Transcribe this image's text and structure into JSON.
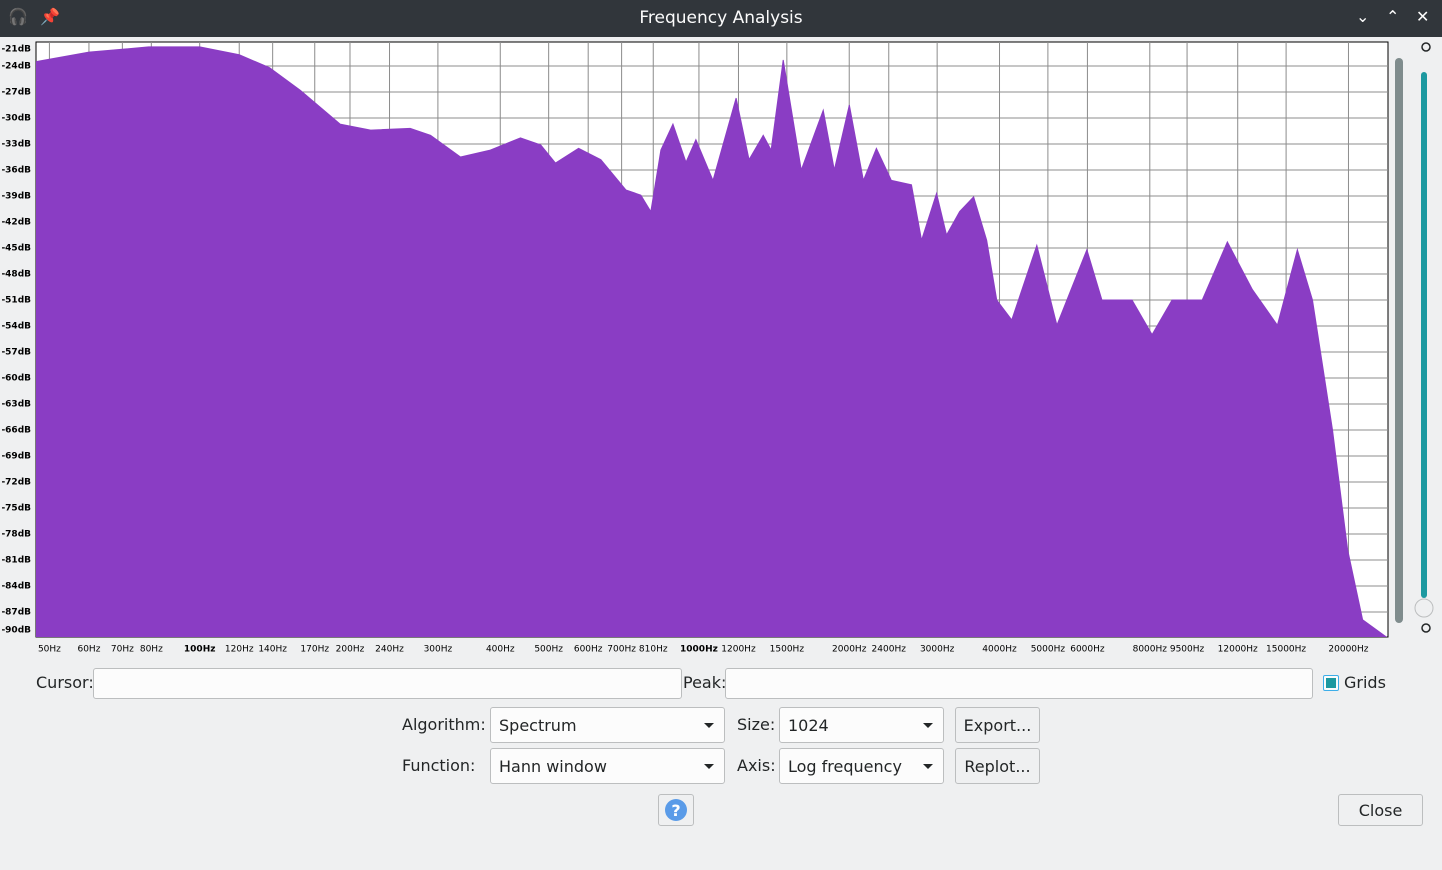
{
  "window": {
    "title": "Frequency Analysis"
  },
  "chart_data": {
    "type": "area",
    "color": "#8a3dc4",
    "xlog": true,
    "grid": true,
    "xlim": [
      47,
      24000
    ],
    "ylim": [
      -90,
      -21
    ],
    "x": [
      47,
      60,
      79,
      100,
      120,
      138,
      159,
      191,
      220,
      264,
      290,
      333,
      382,
      439,
      482,
      516,
      574,
      636,
      714,
      765,
      801,
      839,
      887,
      942,
      986,
      1067,
      1187,
      1260,
      1345,
      1395,
      1475,
      1603,
      1774,
      1867,
      2001,
      2135,
      2267,
      2429,
      2665,
      2792,
      2992,
      3133,
      3328,
      3550,
      3770,
      3949,
      4232,
      4751,
      5212,
      5985,
      6415,
      7370,
      8084,
      8866,
      10190,
      11440,
      12840,
      14410,
      15800,
      16940,
      18580,
      19920,
      21350,
      23970
    ],
    "values": [
      -23.5,
      -22.4,
      -21.8,
      -21.8,
      -22.7,
      -24.2,
      -26.8,
      -30.7,
      -31.4,
      -31.2,
      -32.0,
      -34.5,
      -33.7,
      -32.3,
      -33.1,
      -35.2,
      -33.5,
      -34.8,
      -38.3,
      -38.9,
      -40.8,
      -33.7,
      -30.7,
      -35.1,
      -32.5,
      -37.2,
      -27.7,
      -34.8,
      -32.0,
      -33.7,
      -23.3,
      -36.0,
      -29.1,
      -36.0,
      -28.5,
      -37.2,
      -33.5,
      -37.2,
      -37.7,
      -44.1,
      -38.7,
      -43.5,
      -40.8,
      -39.1,
      -44.1,
      -51.0,
      -53.3,
      -44.7,
      -53.9,
      -45.2,
      -51.0,
      -51.0,
      -55.0,
      -51.0,
      -51.0,
      -44.3,
      -49.8,
      -53.9,
      -45.2,
      -51.0,
      -66.0,
      -79.8,
      -87.9,
      -90.0
    ],
    "xticks": [
      {
        "value": 50,
        "label": "50Hz"
      },
      {
        "value": 60,
        "label": "60Hz"
      },
      {
        "value": 70,
        "label": "70Hz"
      },
      {
        "value": 80,
        "label": "80Hz"
      },
      {
        "value": 100,
        "label": "100Hz"
      },
      {
        "value": 120,
        "label": "120Hz"
      },
      {
        "value": 140,
        "label": "140Hz"
      },
      {
        "value": 170,
        "label": "170Hz"
      },
      {
        "value": 200,
        "label": "200Hz"
      },
      {
        "value": 240,
        "label": "240Hz"
      },
      {
        "value": 300,
        "label": "300Hz"
      },
      {
        "value": 400,
        "label": "400Hz"
      },
      {
        "value": 500,
        "label": "500Hz"
      },
      {
        "value": 600,
        "label": "600Hz"
      },
      {
        "value": 700,
        "label": "700Hz"
      },
      {
        "value": 810,
        "label": "810Hz"
      },
      {
        "value": 1000,
        "label": "1000Hz"
      },
      {
        "value": 1200,
        "label": "1200Hz"
      },
      {
        "value": 1500,
        "label": "1500Hz"
      },
      {
        "value": 2000,
        "label": "2000Hz"
      },
      {
        "value": 2400,
        "label": "2400Hz"
      },
      {
        "value": 3000,
        "label": "3000Hz"
      },
      {
        "value": 4000,
        "label": "4000Hz"
      },
      {
        "value": 5000,
        "label": "5000Hz"
      },
      {
        "value": 6000,
        "label": "6000Hz"
      },
      {
        "value": 8000,
        "label": "8000Hz"
      },
      {
        "value": 9500,
        "label": "9500Hz"
      },
      {
        "value": 12000,
        "label": "12000Hz"
      },
      {
        "value": 15000,
        "label": "15000Hz"
      },
      {
        "value": 20000,
        "label": "20000Hz"
      }
    ],
    "yticks": [
      {
        "value": -21,
        "label": "-21dB"
      },
      {
        "value": -24,
        "label": "-24dB"
      },
      {
        "value": -27,
        "label": "-27dB"
      },
      {
        "value": -30,
        "label": "-30dB"
      },
      {
        "value": -33,
        "label": "-33dB"
      },
      {
        "value": -36,
        "label": "-36dB"
      },
      {
        "value": -39,
        "label": "-39dB"
      },
      {
        "value": -42,
        "label": "-42dB"
      },
      {
        "value": -45,
        "label": "-45dB"
      },
      {
        "value": -48,
        "label": "-48dB"
      },
      {
        "value": -51,
        "label": "-51dB"
      },
      {
        "value": -54,
        "label": "-54dB"
      },
      {
        "value": -57,
        "label": "-57dB"
      },
      {
        "value": -60,
        "label": "-60dB"
      },
      {
        "value": -63,
        "label": "-63dB"
      },
      {
        "value": -66,
        "label": "-66dB"
      },
      {
        "value": -69,
        "label": "-69dB"
      },
      {
        "value": -72,
        "label": "-72dB"
      },
      {
        "value": -75,
        "label": "-75dB"
      },
      {
        "value": -78,
        "label": "-78dB"
      },
      {
        "value": -81,
        "label": "-81dB"
      },
      {
        "value": -84,
        "label": "-84dB"
      },
      {
        "value": -87,
        "label": "-87dB"
      },
      {
        "value": -90,
        "label": "-90dB"
      }
    ]
  },
  "controls": {
    "cursor_label": "Cursor:",
    "peak_label": "Peak:",
    "grids_label": "Grids",
    "grids_checked": true,
    "algorithm_label": "Algorithm:",
    "algorithm": "Spectrum",
    "size_label": "Size:",
    "size": "1024",
    "export": "Export...",
    "function_label": "Function:",
    "function": "Hann window",
    "axis_label": "Axis:",
    "axis": "Log frequency",
    "replot": "Replot...",
    "help": "?",
    "close": "Close"
  }
}
